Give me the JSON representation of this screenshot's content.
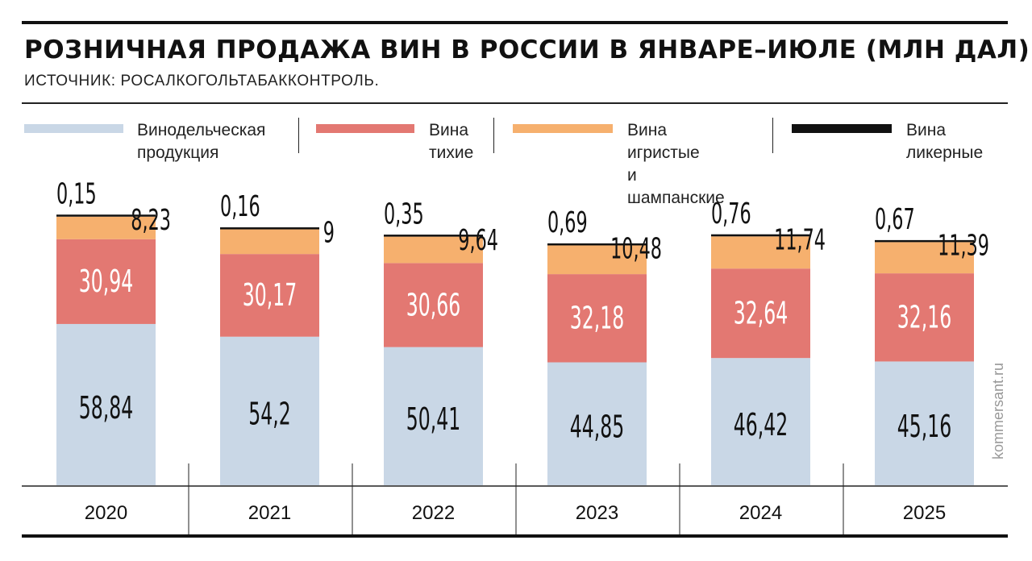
{
  "header": {
    "title": "РОЗНИЧНАЯ ПРОДАЖА ВИН В РОССИИ В ЯНВАРЕ–ИЮЛЕ (МЛН ДАЛ)",
    "subtitle": "ИСТОЧНИК: РОСАЛКОГОЛЬТАБАККОНТРОЛЬ."
  },
  "legend": [
    {
      "label": "Винодельческая\nпродукция",
      "color": "#c9d7e6"
    },
    {
      "label": "Вина\nтихие",
      "color": "#e37872"
    },
    {
      "label": "Вина игристые\nи шампанские",
      "color": "#f6b06e"
    },
    {
      "label": "Вина\nликерные",
      "color": "#111111"
    }
  ],
  "watermark": "kommersant.ru",
  "chart_data": {
    "type": "bar",
    "stacked": true,
    "categories": [
      "2020",
      "2021",
      "2022",
      "2023",
      "2024",
      "2025"
    ],
    "series": [
      {
        "name": "Винодельческая продукция",
        "color": "#c9d7e6",
        "values": [
          58.84,
          54.2,
          50.41,
          44.85,
          46.42,
          45.16
        ],
        "labels": [
          "58,84",
          "54,2",
          "50,41",
          "44,85",
          "46,42",
          "45,16"
        ]
      },
      {
        "name": "Вина тихие",
        "color": "#e37872",
        "values": [
          30.94,
          30.17,
          30.66,
          32.18,
          32.64,
          32.16
        ],
        "labels": [
          "30,94",
          "30,17",
          "30,66",
          "32,18",
          "32,64",
          "32,16"
        ]
      },
      {
        "name": "Вина игристые и шампанские",
        "color": "#f6b06e",
        "values": [
          8.23,
          9,
          9.64,
          10.48,
          11.74,
          11.39
        ],
        "labels": [
          "8,23",
          "9",
          "9,64",
          "10,48",
          "11,74",
          "11,39"
        ]
      },
      {
        "name": "Вина ликерные",
        "color": "#111111",
        "values": [
          0.15,
          0.16,
          0.35,
          0.69,
          0.76,
          0.67
        ],
        "labels": [
          "0,15",
          "0,16",
          "0,35",
          "0,69",
          "0,76",
          "0,67"
        ]
      }
    ]
  }
}
